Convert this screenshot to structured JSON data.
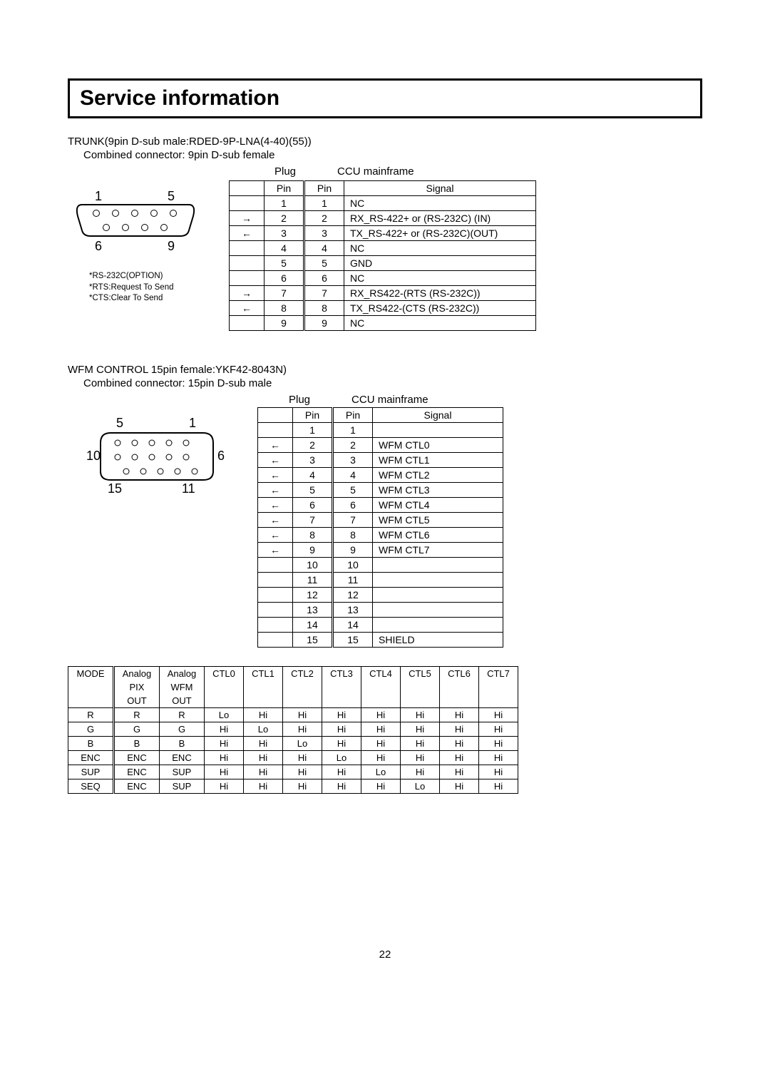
{
  "title": "Service information",
  "section1": {
    "head": "TRUNK(9pin D-sub male:RDED-9P-LNA(4-40)(55))",
    "sub": "Combined connector: 9pin D-sub female",
    "plug_label": "Plug",
    "mainframe_label": "CCU mainframe",
    "pin_hdr_left": "Pin",
    "pin_hdr_right": "Pin",
    "signal_hdr": "Signal",
    "rows": [
      {
        "dir": "",
        "p": "1",
        "p2": "1",
        "sig": "NC"
      },
      {
        "dir": "→",
        "p": "2",
        "p2": "2",
        "sig": "RX_RS-422+ or (RS-232C) (IN)"
      },
      {
        "dir": "←",
        "p": "3",
        "p2": "3",
        "sig": "TX_RS-422+ or (RS-232C)(OUT)"
      },
      {
        "dir": "",
        "p": "4",
        "p2": "4",
        "sig": "NC"
      },
      {
        "dir": "",
        "p": "5",
        "p2": "5",
        "sig": "GND"
      },
      {
        "dir": "",
        "p": "6",
        "p2": "6",
        "sig": "NC"
      },
      {
        "dir": "→",
        "p": "7",
        "p2": "7",
        "sig": "RX_RS422-(RTS (RS-232C))"
      },
      {
        "dir": "←",
        "p": "8",
        "p2": "8",
        "sig": "TX_RS422-(CTS (RS-232C))"
      },
      {
        "dir": "",
        "p": "9",
        "p2": "9",
        "sig": "NC"
      }
    ],
    "notes": [
      "*RS-232C(OPTION)",
      "*RTS:Request To Send",
      "*CTS:Clear To Send"
    ],
    "conn_labels": {
      "tl": "1",
      "tr": "5",
      "bl": "6",
      "br": "9"
    }
  },
  "section2": {
    "head": "WFM CONTROL    15pin female:YKF42-8043N)",
    "sub": "Combined connector: 15pin D-sub male",
    "plug_label": "Plug",
    "mainframe_label": "CCU mainframe",
    "pin_hdr_left": "Pin",
    "pin_hdr_right": "Pin",
    "signal_hdr": "Signal",
    "rows": [
      {
        "dir": "",
        "p": "1",
        "p2": "1",
        "sig": ""
      },
      {
        "dir": "←",
        "p": "2",
        "p2": "2",
        "sig": "WFM CTL0"
      },
      {
        "dir": "←",
        "p": "3",
        "p2": "3",
        "sig": "WFM CTL1"
      },
      {
        "dir": "←",
        "p": "4",
        "p2": "4",
        "sig": "WFM CTL2"
      },
      {
        "dir": "←",
        "p": "5",
        "p2": "5",
        "sig": "WFM CTL3"
      },
      {
        "dir": "←",
        "p": "6",
        "p2": "6",
        "sig": "WFM CTL4"
      },
      {
        "dir": "←",
        "p": "7",
        "p2": "7",
        "sig": "WFM CTL5"
      },
      {
        "dir": "←",
        "p": "8",
        "p2": "8",
        "sig": "WFM CTL6"
      },
      {
        "dir": "←",
        "p": "9",
        "p2": "9",
        "sig": "WFM CTL7"
      },
      {
        "dir": "",
        "p": "10",
        "p2": "10",
        "sig": ""
      },
      {
        "dir": "",
        "p": "11",
        "p2": "11",
        "sig": ""
      },
      {
        "dir": "",
        "p": "12",
        "p2": "12",
        "sig": ""
      },
      {
        "dir": "",
        "p": "13",
        "p2": "13",
        "sig": ""
      },
      {
        "dir": "",
        "p": "14",
        "p2": "14",
        "sig": ""
      },
      {
        "dir": "",
        "p": "15",
        "p2": "15",
        "sig": "SHIELD"
      }
    ],
    "conn_labels": {
      "tl": "5",
      "tr": "1",
      "ml": "10",
      "mr": "6",
      "bl": "15",
      "br": "11"
    }
  },
  "mode_table": {
    "headers_row1": [
      "MODE",
      "Analog",
      "Analog",
      "CTL0",
      "CTL1",
      "CTL2",
      "CTL3",
      "CTL4",
      "CTL5",
      "CTL6",
      "CTL7"
    ],
    "headers_row2": [
      "",
      "PIX",
      "WFM",
      "",
      "",
      "",
      "",
      "",
      "",
      "",
      ""
    ],
    "headers_row3": [
      "",
      "OUT",
      "OUT",
      "",
      "",
      "",
      "",
      "",
      "",
      "",
      ""
    ],
    "rows": [
      [
        "R",
        "R",
        "R",
        "Lo",
        "Hi",
        "Hi",
        "Hi",
        "Hi",
        "Hi",
        "Hi",
        "Hi"
      ],
      [
        "G",
        "G",
        "G",
        "Hi",
        "Lo",
        "Hi",
        "Hi",
        "Hi",
        "Hi",
        "Hi",
        "Hi"
      ],
      [
        "B",
        "B",
        "B",
        "Hi",
        "Hi",
        "Lo",
        "Hi",
        "Hi",
        "Hi",
        "Hi",
        "Hi"
      ],
      [
        "ENC",
        "ENC",
        "ENC",
        "Hi",
        "Hi",
        "Hi",
        "Lo",
        "Hi",
        "Hi",
        "Hi",
        "Hi"
      ],
      [
        "SUP",
        "ENC",
        "SUP",
        "Hi",
        "Hi",
        "Hi",
        "Hi",
        "Lo",
        "Hi",
        "Hi",
        "Hi"
      ],
      [
        "SEQ",
        "ENC",
        "SUP",
        "Hi",
        "Hi",
        "Hi",
        "Hi",
        "Hi",
        "Lo",
        "Hi",
        "Hi"
      ]
    ]
  },
  "page_number": "22",
  "colors": {
    "text": "#000000",
    "bg": "#ffffff",
    "border": "#000000"
  }
}
